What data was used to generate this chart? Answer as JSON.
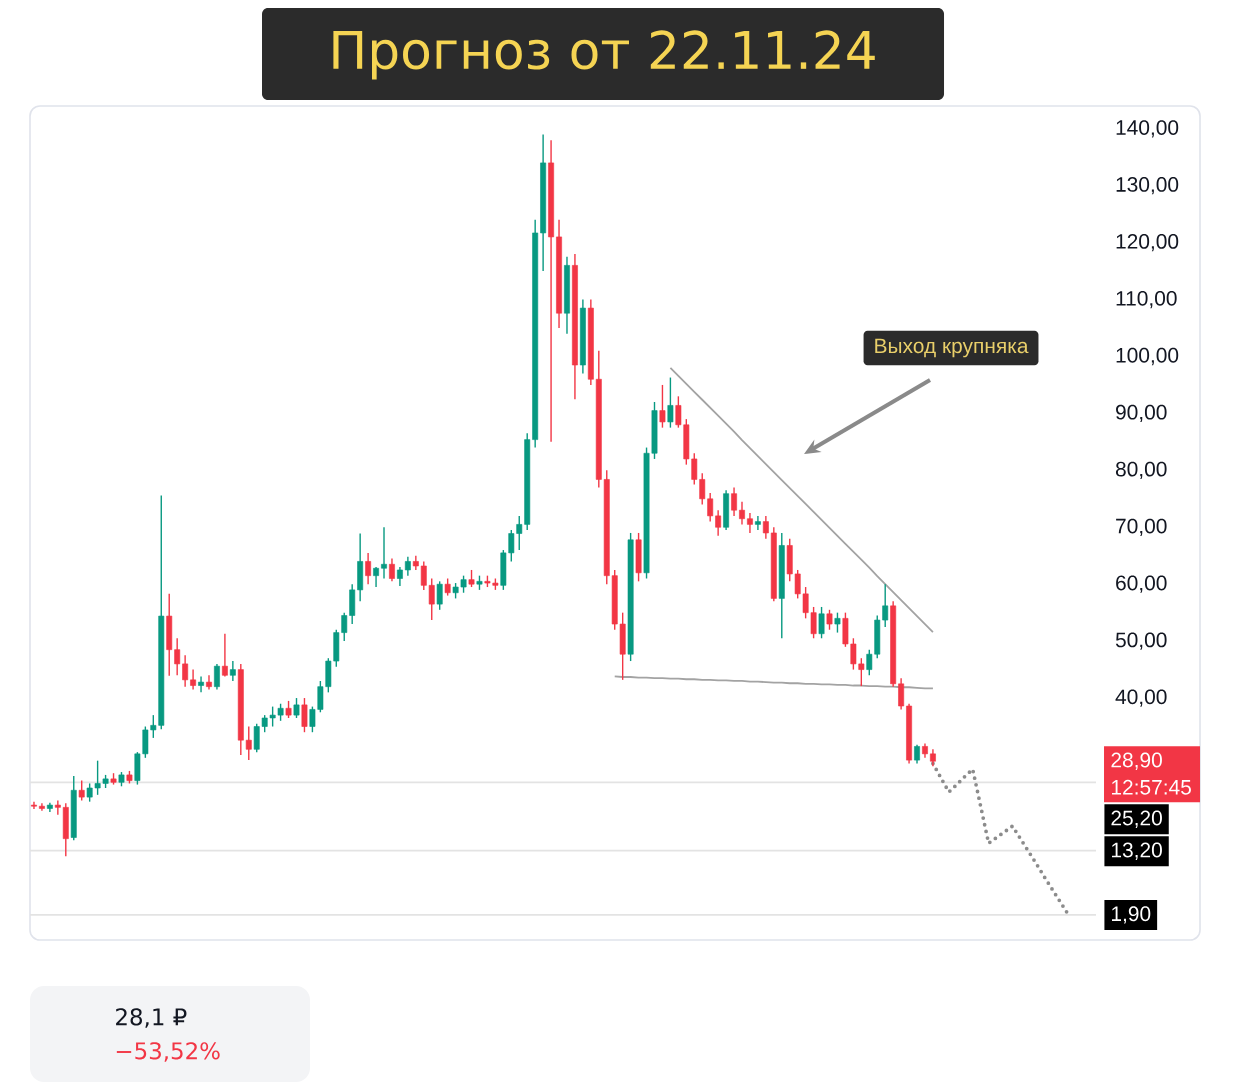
{
  "chart_data": {
    "type": "candlestick",
    "title": "Прогноз от 22.11.24",
    "categories": [
      null,
      null,
      null,
      null,
      null,
      null,
      null,
      null,
      null,
      null,
      null,
      null,
      null,
      null,
      null,
      null,
      null,
      null,
      null,
      null,
      null,
      null,
      null,
      null,
      null,
      null,
      null,
      null,
      null,
      null,
      null,
      null,
      null,
      null,
      null,
      null,
      null,
      null,
      null,
      null,
      null,
      null,
      null,
      null,
      null,
      null,
      null,
      null,
      null,
      null,
      null,
      null,
      null,
      null,
      null,
      null,
      null,
      null,
      null,
      null,
      null,
      null,
      null,
      null,
      null,
      null,
      null,
      null,
      null,
      null,
      null,
      null,
      null,
      null,
      null,
      null,
      null,
      null,
      null,
      null,
      null,
      null,
      null,
      null,
      null,
      null,
      null,
      null,
      null,
      null,
      null,
      null,
      null,
      null,
      null,
      null,
      null,
      null,
      null,
      null,
      null,
      null,
      null,
      null,
      null,
      null,
      null,
      null,
      null,
      null,
      null,
      null,
      null,
      null,
      null,
      null,
      null,
      null,
      null,
      null,
      null,
      null,
      null,
      null,
      null,
      null,
      null,
      null,
      null,
      null,
      null,
      null,
      null,
      null
    ],
    "ohlc": [
      [
        21.2,
        21.8,
        20.5,
        21.0
      ],
      [
        21.0,
        21.5,
        20.2,
        20.6
      ],
      [
        20.6,
        21.6,
        20.0,
        21.2
      ],
      [
        21.2,
        22.0,
        19.5,
        20.8
      ],
      [
        20.8,
        21.5,
        12.2,
        15.3
      ],
      [
        15.5,
        26.3,
        15.0,
        23.8
      ],
      [
        23.8,
        25.5,
        22.0,
        22.6
      ],
      [
        22.6,
        25.0,
        21.8,
        24.2
      ],
      [
        24.2,
        29.0,
        23.0,
        25.0
      ],
      [
        25.0,
        26.5,
        24.2,
        25.8
      ],
      [
        25.8,
        26.8,
        24.8,
        25.2
      ],
      [
        25.2,
        27.0,
        24.5,
        26.5
      ],
      [
        26.5,
        27.2,
        25.0,
        25.5
      ],
      [
        25.5,
        30.5,
        24.8,
        30.2
      ],
      [
        30.2,
        35.0,
        29.5,
        34.4
      ],
      [
        34.4,
        37.0,
        33.0,
        35.2
      ],
      [
        35.2,
        75.6,
        34.5,
        54.4
      ],
      [
        54.4,
        58.3,
        43.9,
        48.5
      ],
      [
        48.5,
        50.5,
        44.0,
        46.0
      ],
      [
        46.0,
        47.5,
        42.0,
        43.2
      ],
      [
        43.2,
        45.0,
        41.5,
        42.2
      ],
      [
        42.2,
        43.8,
        41.0,
        42.8
      ],
      [
        42.8,
        44.0,
        41.5,
        42.0
      ],
      [
        42.0,
        46.0,
        41.5,
        45.6
      ],
      [
        45.6,
        51.3,
        43.8,
        44.0
      ],
      [
        44.0,
        46.5,
        43.0,
        45.0
      ],
      [
        45.0,
        46.0,
        30.0,
        32.6
      ],
      [
        32.6,
        35.0,
        29.1,
        31.0
      ],
      [
        31.0,
        35.5,
        30.5,
        35.0
      ],
      [
        35.0,
        37.0,
        34.0,
        36.5
      ],
      [
        36.5,
        38.5,
        35.0,
        37.0
      ],
      [
        37.0,
        39.0,
        36.0,
        38.2
      ],
      [
        38.2,
        39.5,
        36.5,
        37.0
      ],
      [
        37.0,
        40.0,
        36.5,
        38.8
      ],
      [
        38.8,
        40.0,
        34.0,
        35.0
      ],
      [
        35.0,
        38.5,
        34.0,
        38.0
      ],
      [
        38.0,
        43.0,
        37.5,
        42.0
      ],
      [
        42.0,
        47.0,
        41.0,
        46.5
      ],
      [
        46.5,
        52.0,
        45.5,
        51.5
      ],
      [
        51.5,
        55.0,
        50.0,
        54.5
      ],
      [
        54.5,
        60.0,
        53.0,
        59.0
      ],
      [
        59.0,
        68.9,
        57.0,
        64.0
      ],
      [
        64.0,
        65.5,
        60.0,
        61.5
      ],
      [
        61.5,
        63.0,
        59.5,
        62.8
      ],
      [
        62.8,
        70.0,
        61.0,
        63.5
      ],
      [
        63.5,
        64.5,
        60.5,
        61.0
      ],
      [
        61.0,
        63.0,
        59.7,
        62.5
      ],
      [
        62.5,
        64.8,
        61.5,
        64.0
      ],
      [
        64.0,
        65.0,
        62.5,
        63.2
      ],
      [
        63.2,
        64.0,
        59.0,
        59.8
      ],
      [
        59.8,
        61.0,
        53.7,
        56.5
      ],
      [
        56.5,
        60.5,
        55.5,
        60.0
      ],
      [
        60.0,
        61.0,
        58.0,
        58.5
      ],
      [
        58.5,
        60.2,
        57.5,
        59.5
      ],
      [
        59.5,
        61.5,
        58.5,
        60.8
      ],
      [
        60.8,
        62.5,
        59.5,
        60.0
      ],
      [
        60.0,
        61.5,
        59.0,
        60.5
      ],
      [
        60.5,
        61.5,
        59.5,
        60.2
      ],
      [
        60.2,
        61.0,
        59.0,
        59.8
      ],
      [
        59.8,
        66.0,
        59.0,
        65.5
      ],
      [
        65.5,
        69.5,
        64.0,
        68.9
      ],
      [
        68.9,
        72.0,
        66.0,
        70.5
      ],
      [
        70.5,
        86.5,
        69.5,
        85.4
      ],
      [
        85.4,
        124.0,
        84.0,
        121.7
      ],
      [
        121.7,
        139.0,
        115.0,
        134.0
      ],
      [
        134.0,
        138.0,
        85.0,
        121.0
      ],
      [
        121.0,
        124.0,
        105.0,
        107.6
      ],
      [
        107.6,
        117.5,
        104.0,
        116.0
      ],
      [
        116.0,
        118.0,
        92.5,
        98.5
      ],
      [
        98.5,
        110.0,
        97.0,
        108.5
      ],
      [
        108.5,
        110.0,
        95.0,
        96.0
      ],
      [
        96.0,
        101.0,
        77.0,
        78.4
      ],
      [
        78.4,
        80.0,
        60.0,
        61.5
      ],
      [
        61.5,
        62.5,
        52.0,
        53.0
      ],
      [
        53.0,
        55.0,
        43.2,
        47.7
      ],
      [
        47.7,
        69.0,
        46.5,
        67.8
      ],
      [
        67.8,
        69.0,
        60.5,
        62.0
      ],
      [
        62.0,
        84.0,
        61.0,
        83.0
      ],
      [
        83.0,
        92.0,
        82.0,
        90.5
      ],
      [
        90.5,
        95.0,
        87.5,
        88.5
      ],
      [
        88.5,
        96.3,
        87.5,
        91.4
      ],
      [
        91.4,
        93.0,
        87.5,
        88.0
      ],
      [
        88.0,
        89.0,
        81.0,
        82.0
      ],
      [
        82.0,
        83.0,
        77.5,
        78.4
      ],
      [
        78.4,
        79.5,
        74.0,
        75.0
      ],
      [
        75.0,
        76.0,
        71.0,
        72.0
      ],
      [
        72.0,
        73.0,
        68.5,
        70.0
      ],
      [
        70.0,
        76.5,
        69.5,
        75.9
      ],
      [
        75.9,
        77.0,
        72.0,
        73.0
      ],
      [
        73.0,
        74.5,
        70.5,
        71.5
      ],
      [
        71.5,
        72.5,
        69.0,
        70.5
      ],
      [
        70.5,
        72.0,
        69.5,
        71.0
      ],
      [
        71.0,
        72.0,
        68.0,
        69.0
      ],
      [
        69.0,
        70.0,
        57.0,
        57.5
      ],
      [
        57.5,
        69.0,
        50.5,
        66.8
      ],
      [
        66.8,
        68.0,
        60.5,
        61.8
      ],
      [
        61.8,
        62.5,
        57.5,
        58.3
      ],
      [
        58.3,
        59.5,
        54.0,
        55.0
      ],
      [
        55.0,
        56.0,
        50.5,
        51.3
      ],
      [
        51.3,
        56.0,
        50.5,
        54.8
      ],
      [
        54.8,
        55.5,
        52.0,
        53.0
      ],
      [
        53.0,
        55.0,
        51.5,
        54.0
      ],
      [
        54.0,
        55.0,
        49.0,
        49.5
      ],
      [
        49.5,
        50.5,
        45.0,
        46.0
      ],
      [
        46.0,
        47.0,
        42.1,
        45.0
      ],
      [
        45.0,
        48.5,
        44.0,
        47.7
      ],
      [
        47.7,
        54.5,
        47.0,
        53.7
      ],
      [
        53.7,
        60.0,
        52.5,
        56.2
      ],
      [
        56.2,
        57.0,
        42.0,
        42.5
      ],
      [
        42.5,
        43.5,
        38.0,
        38.6
      ],
      [
        38.6,
        39.0,
        28.5,
        29.1
      ],
      [
        29.1,
        31.8,
        28.5,
        31.5
      ],
      [
        31.5,
        32.0,
        29.5,
        30.2
      ],
      [
        30.2,
        31.0,
        28.0,
        28.9
      ],
      null,
      null,
      null,
      null,
      null,
      null,
      null,
      null,
      null,
      null,
      null,
      null,
      null,
      null,
      null,
      null,
      null,
      null,
      null,
      null
    ],
    "series": [
      {
        "type": "line",
        "color": "#a3a3a3",
        "values": [
          null,
          null,
          null,
          null,
          null,
          null,
          null,
          null,
          null,
          null,
          null,
          null,
          null,
          null,
          null,
          null,
          null,
          null,
          null,
          null,
          null,
          null,
          null,
          null,
          null,
          null,
          null,
          null,
          null,
          null,
          null,
          null,
          null,
          null,
          null,
          null,
          null,
          null,
          null,
          null,
          null,
          null,
          null,
          null,
          null,
          null,
          null,
          null,
          null,
          null,
          null,
          null,
          null,
          null,
          null,
          null,
          null,
          null,
          null,
          null,
          null,
          null,
          null,
          null,
          null,
          null,
          null,
          null,
          null,
          null,
          null,
          null,
          null,
          null,
          null,
          null,
          null,
          null,
          null,
          null,
          98.0,
          96.6,
          95.2,
          93.8,
          92.4,
          91.0,
          89.6,
          88.2,
          86.8,
          85.3,
          83.9,
          82.5,
          81.1,
          79.7,
          78.3,
          76.9,
          75.5,
          74.1,
          72.7,
          71.3,
          69.9,
          68.5,
          67.1,
          65.7,
          64.3,
          62.9,
          61.4,
          60.0,
          58.6,
          57.2,
          55.8,
          54.4,
          53.0,
          51.6,
          null,
          null,
          null,
          null,
          null,
          null,
          null,
          null,
          null,
          null,
          null,
          null,
          null,
          null,
          null,
          null,
          null,
          null,
          null,
          null
        ]
      },
      {
        "type": "line",
        "color": "#a3a3a3",
        "values": [
          null,
          null,
          null,
          null,
          null,
          null,
          null,
          null,
          null,
          null,
          null,
          null,
          null,
          null,
          null,
          null,
          null,
          null,
          null,
          null,
          null,
          null,
          null,
          null,
          null,
          null,
          null,
          null,
          null,
          null,
          null,
          null,
          null,
          null,
          null,
          null,
          null,
          null,
          null,
          null,
          null,
          null,
          null,
          null,
          null,
          null,
          null,
          null,
          null,
          null,
          null,
          null,
          null,
          null,
          null,
          null,
          null,
          null,
          null,
          null,
          null,
          null,
          null,
          null,
          null,
          null,
          null,
          null,
          null,
          null,
          null,
          null,
          null,
          43.8,
          43.7,
          43.7,
          43.6,
          43.6,
          43.5,
          43.5,
          43.4,
          43.4,
          43.3,
          43.3,
          43.2,
          43.2,
          43.1,
          43.1,
          43.0,
          43.0,
          42.9,
          42.9,
          42.8,
          42.7,
          42.7,
          42.6,
          42.6,
          42.5,
          42.5,
          42.4,
          42.4,
          42.3,
          42.3,
          42.2,
          42.2,
          42.1,
          42.1,
          42.0,
          42.0,
          41.9,
          41.9,
          41.8,
          41.7,
          41.7,
          null,
          null,
          null,
          null,
          null,
          null,
          null,
          null,
          null,
          null,
          null,
          null,
          null,
          null,
          null,
          null,
          null,
          null,
          null,
          null
        ]
      },
      {
        "type": "line",
        "color": "#8c8c8c",
        "line_style": "dotted",
        "values": [
          null,
          null,
          null,
          null,
          null,
          null,
          null,
          null,
          null,
          null,
          null,
          null,
          null,
          null,
          null,
          null,
          null,
          null,
          null,
          null,
          null,
          null,
          null,
          null,
          null,
          null,
          null,
          null,
          null,
          null,
          null,
          null,
          null,
          null,
          null,
          null,
          null,
          null,
          null,
          null,
          null,
          null,
          null,
          null,
          null,
          null,
          null,
          null,
          null,
          null,
          null,
          null,
          null,
          null,
          null,
          null,
          null,
          null,
          null,
          null,
          null,
          null,
          null,
          null,
          null,
          null,
          null,
          null,
          null,
          null,
          null,
          null,
          null,
          null,
          null,
          null,
          null,
          null,
          null,
          null,
          null,
          null,
          null,
          null,
          null,
          null,
          null,
          null,
          null,
          null,
          null,
          null,
          null,
          null,
          null,
          null,
          null,
          null,
          null,
          null,
          null,
          null,
          null,
          null,
          null,
          null,
          null,
          null,
          null,
          null,
          null,
          null,
          null,
          28.5,
          26.0,
          23.5,
          24.8,
          26.2,
          27.5,
          21.0,
          14.5,
          15.5,
          16.5,
          17.5,
          15.3,
          13.1,
          10.9,
          8.6,
          6.4,
          4.2,
          2.0,
          null,
          null,
          null
        ]
      }
    ],
    "ylim": [
      -2.5,
      144
    ],
    "yticks": [
      {
        "value": 40,
        "label": "40,00"
      },
      {
        "value": 50,
        "label": "50,00"
      },
      {
        "value": 60,
        "label": "60,00"
      },
      {
        "value": 70,
        "label": "70,00"
      },
      {
        "value": 80,
        "label": "80,00"
      },
      {
        "value": 90,
        "label": "90,00"
      },
      {
        "value": 100,
        "label": "100,00"
      },
      {
        "value": 110,
        "label": "110,00"
      },
      {
        "value": 120,
        "label": "120,00"
      },
      {
        "value": 130,
        "label": "130,00"
      },
      {
        "value": 140,
        "label": "140,00"
      }
    ],
    "tick_labels": "y",
    "ref_lines": [
      {
        "axis": "y",
        "value": 25.2,
        "label": "25,20",
        "color": "#e3e3e3"
      },
      {
        "axis": "y",
        "value": 13.2,
        "label": "13,20",
        "color": "#e3e3e3"
      },
      {
        "axis": "y",
        "value": 1.9,
        "label": "1,90",
        "color": "#e3e3e3"
      }
    ],
    "annotations": [
      "Выход крупняка",
      "28,90",
      "12:57:45",
      "28,1 ₽",
      "−53,52%"
    ]
  }
}
